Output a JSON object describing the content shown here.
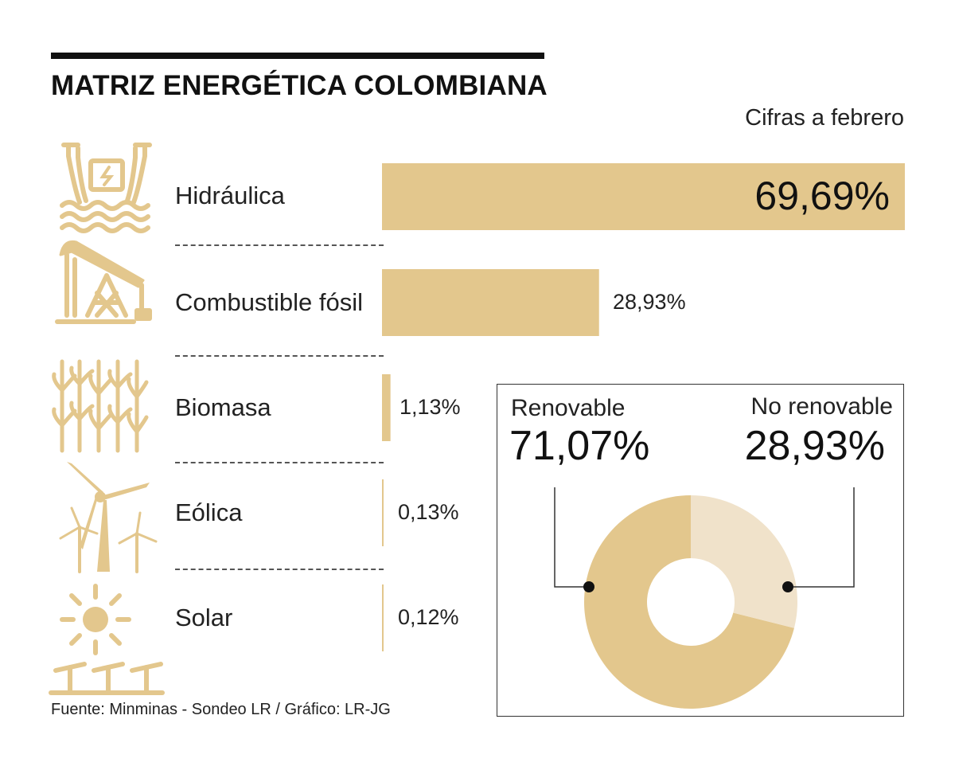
{
  "header": {
    "title": "MATRIZ ENERGÉTICA COLOMBIANA",
    "subtitle": "Cifras a febrero"
  },
  "footer": {
    "source": "Fuente: Minminas - Sondeo LR / Gráfico: LR-JG"
  },
  "colors": {
    "accent": "#E3C78D",
    "accent_light": "#F0E2CA",
    "ink": "#111111"
  },
  "icons": [
    "dam-icon",
    "oil-pump-icon",
    "sugarcane-icon",
    "wind-turbine-icon",
    "solar-panel-icon"
  ],
  "chart_data": [
    {
      "type": "bar",
      "orientation": "horizontal",
      "categories": [
        "Hidráulica",
        "Combustible fósil",
        "Biomasa",
        "Eólica",
        "Solar"
      ],
      "values": [
        69.69,
        28.93,
        1.13,
        0.13,
        0.12
      ],
      "value_labels": [
        "69,69%",
        "28,93%",
        "1,13%",
        "0,13%",
        "0,12%"
      ],
      "xlim": [
        0,
        69.69
      ],
      "grid": false
    },
    {
      "type": "pie",
      "labels": [
        "Renovable",
        "No renovable"
      ],
      "values": [
        71.07,
        28.93
      ],
      "value_labels": [
        "71,07%",
        "28,93%"
      ],
      "colors": [
        "#E3C78D",
        "#F0E2CA"
      ]
    }
  ]
}
